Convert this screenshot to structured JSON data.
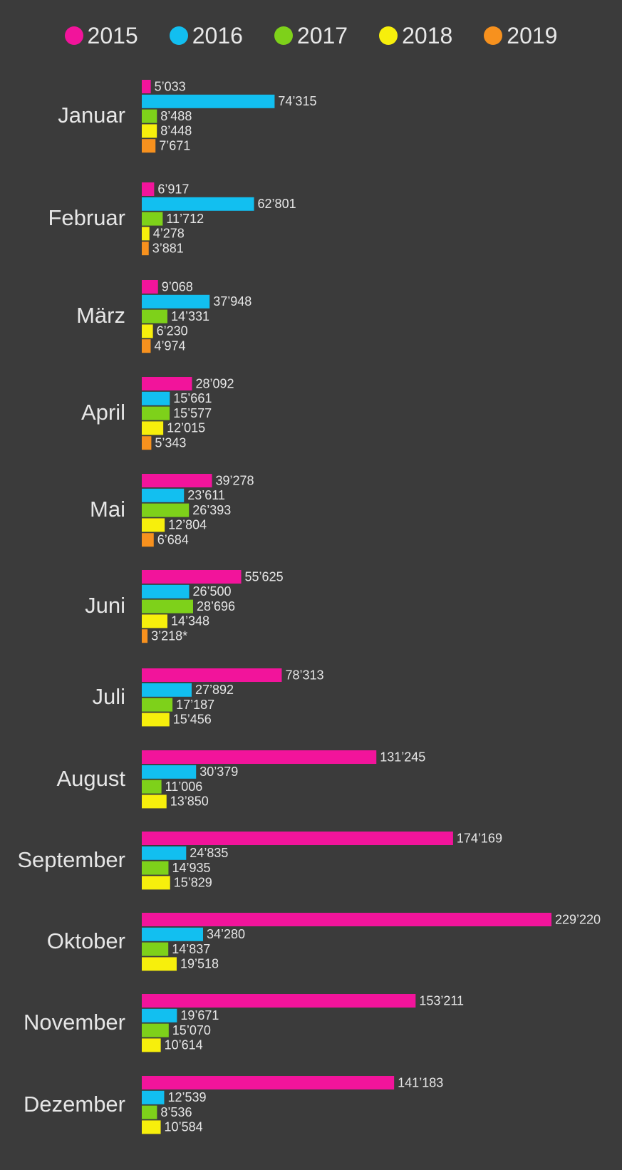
{
  "chart_data": {
    "type": "bar",
    "orientation": "horizontal",
    "legend_position": "top",
    "grid": false,
    "xlim": [
      0,
      229220
    ],
    "categories": [
      "Januar",
      "Februar",
      "März",
      "April",
      "Mai",
      "Juni",
      "Juli",
      "August",
      "September",
      "Oktober",
      "November",
      "Dezember"
    ],
    "series": [
      {
        "name": "2015",
        "color": "#f2149b",
        "values": [
          5033,
          6917,
          9068,
          28092,
          39278,
          55625,
          78313,
          131245,
          174169,
          229220,
          153211,
          141183
        ],
        "labels": [
          "5’033",
          "6’917",
          "9’068",
          "28’092",
          "39’278",
          "55’625",
          "78’313",
          "131’245",
          "174’169",
          "229’220",
          "153’211",
          "141’183"
        ]
      },
      {
        "name": "2016",
        "color": "#12bff0",
        "values": [
          74315,
          62801,
          37948,
          15661,
          23611,
          26500,
          27892,
          30379,
          24835,
          34280,
          19671,
          12539
        ],
        "labels": [
          "74’315",
          "62’801",
          "37’948",
          "15’661",
          "23’611",
          "26’500",
          "27’892",
          "30’379",
          "24’835",
          "34’280",
          "19’671",
          "12’539"
        ]
      },
      {
        "name": "2017",
        "color": "#7ed11a",
        "values": [
          8488,
          11712,
          14331,
          15577,
          26393,
          28696,
          17187,
          11006,
          14935,
          14837,
          15070,
          8536
        ],
        "labels": [
          "8’488",
          "11’712",
          "14’331",
          "15’577",
          "26’393",
          "28’696",
          "17’187",
          "11’006",
          "14’935",
          "14’837",
          "15’070",
          "8’536"
        ]
      },
      {
        "name": "2018",
        "color": "#f7ef0c",
        "values": [
          8448,
          4278,
          6230,
          12015,
          12804,
          14348,
          15456,
          13850,
          15829,
          19518,
          10614,
          10584
        ],
        "labels": [
          "8’448",
          "4’278",
          "6’230",
          "12’015",
          "12’804",
          "14’348",
          "15’456",
          "13’850",
          "15’829",
          "19’518",
          "10’614",
          "10’584"
        ]
      },
      {
        "name": "2019",
        "color": "#f7911e",
        "values": [
          7671,
          3881,
          4974,
          5343,
          6684,
          3218,
          null,
          null,
          null,
          null,
          null,
          null
        ],
        "labels": [
          "7’671",
          "3’881",
          "4’974",
          "5’343",
          "6’684",
          "3’218*",
          "",
          "",
          "",
          "",
          "",
          ""
        ]
      }
    ]
  }
}
